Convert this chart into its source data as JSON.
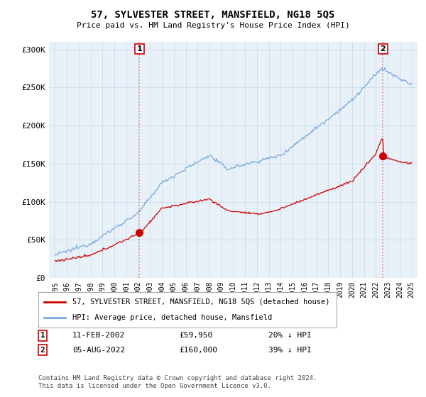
{
  "title": "57, SYLVESTER STREET, MANSFIELD, NG18 5QS",
  "subtitle": "Price paid vs. HM Land Registry's House Price Index (HPI)",
  "hpi_label": "HPI: Average price, detached house, Mansfield",
  "price_label": "57, SYLVESTER STREET, MANSFIELD, NG18 5QS (detached house)",
  "ylabel_ticks": [
    "£0",
    "£50K",
    "£100K",
    "£150K",
    "£200K",
    "£250K",
    "£300K"
  ],
  "ytick_vals": [
    0,
    50000,
    100000,
    150000,
    200000,
    250000,
    300000
  ],
  "ylim": [
    0,
    310000
  ],
  "sale1": {
    "date": "11-FEB-2002",
    "price": 59950,
    "label": "1",
    "hpi_pct": "20% ↓ HPI",
    "x": 2002.11
  },
  "sale2": {
    "date": "05-AUG-2022",
    "price": 160000,
    "label": "2",
    "hpi_pct": "39% ↓ HPI",
    "x": 2022.6
  },
  "xlim": [
    1994.5,
    2025.5
  ],
  "hpi_color": "#7aaadd",
  "price_color": "#cc0000",
  "dashed_color": "#dd8888",
  "chart_bg": "#e8f0f8",
  "background_color": "#ffffff",
  "grid_color": "#c8d8e8",
  "footer": "Contains HM Land Registry data © Crown copyright and database right 2024.\nThis data is licensed under the Open Government Licence v3.0."
}
